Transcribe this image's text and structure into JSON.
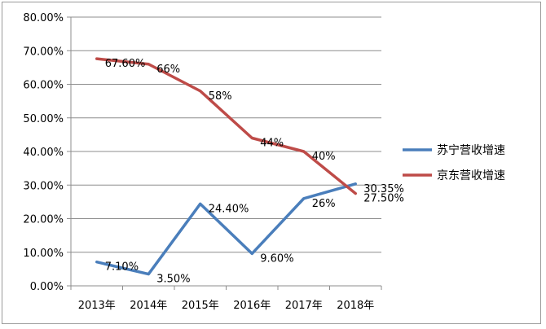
{
  "chart_data": {
    "type": "line",
    "categories": [
      "2013年",
      "2014年",
      "2015年",
      "2016年",
      "2017年",
      "2018年"
    ],
    "ylim": [
      0,
      80
    ],
    "y_ticks": [
      "0.00%",
      "10.00%",
      "20.00%",
      "30.00%",
      "40.00%",
      "50.00%",
      "60.00%",
      "70.00%",
      "80.00%"
    ],
    "grid": "horizontal",
    "legend_position": "right",
    "series": [
      {
        "name": "苏宁营收增速",
        "color": "#4a7ebb",
        "values": [
          7.1,
          3.5,
          24.4,
          9.6,
          26.0,
          30.35
        ],
        "labels": [
          "7.10%",
          "3.50%",
          "24.40%",
          "9.60%",
          "26%",
          "30.35%"
        ]
      },
      {
        "name": "京东营收增速",
        "color": "#be4b48",
        "values": [
          67.6,
          66.0,
          58.0,
          44.0,
          40.0,
          27.5
        ],
        "labels": [
          "67.60%",
          "66%",
          "58%",
          "44%",
          "40%",
          "27.50%"
        ]
      }
    ]
  }
}
